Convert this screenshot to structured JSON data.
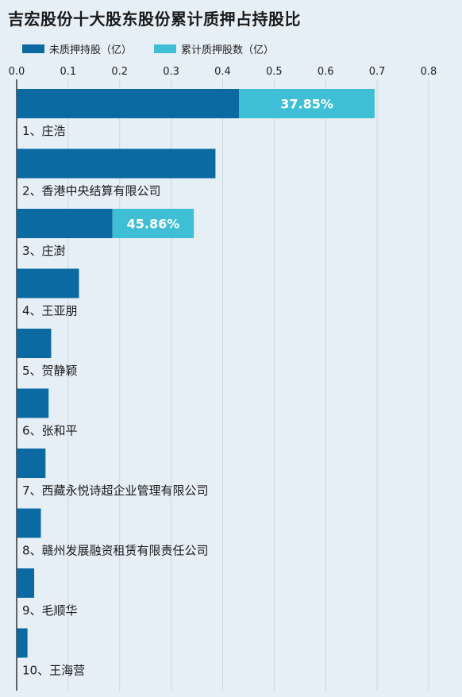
{
  "chart_data": {
    "type": "bar",
    "orientation": "horizontal",
    "stacked": true,
    "title": "吉宏股份十大股东股份累计质押占持股比",
    "legend_position": "top-left",
    "grid": true,
    "xlim": [
      0,
      0.8
    ],
    "xticks": [
      "0.0",
      "0.1",
      "0.2",
      "0.3",
      "0.4",
      "0.5",
      "0.6",
      "0.7",
      "0.8"
    ],
    "categories": [
      "1、庄浩",
      "2、香港中央结算有限公司",
      "3、庄澍",
      "4、王亚朋",
      "5、贺静颖",
      "6、张和平",
      "7、西藏永悦诗超企业管理有限公司",
      "8、赣州发展融资租赁有限责任公司",
      "9、毛顺华",
      "10、王海营"
    ],
    "series": [
      {
        "name": "未质押持股（亿）",
        "color": "#0b6aa2",
        "values": [
          0.432,
          0.386,
          0.186,
          0.121,
          0.067,
          0.062,
          0.056,
          0.047,
          0.034,
          0.021
        ]
      },
      {
        "name": "累计质押股数（亿）",
        "color": "#3fbfd5",
        "values": [
          0.263,
          0,
          0.158,
          0,
          0,
          0,
          0,
          0,
          0,
          0
        ],
        "data_labels": [
          "37.85%",
          "",
          "45.86%",
          "",
          "",
          "",
          "",
          "",
          "",
          ""
        ]
      }
    ]
  }
}
